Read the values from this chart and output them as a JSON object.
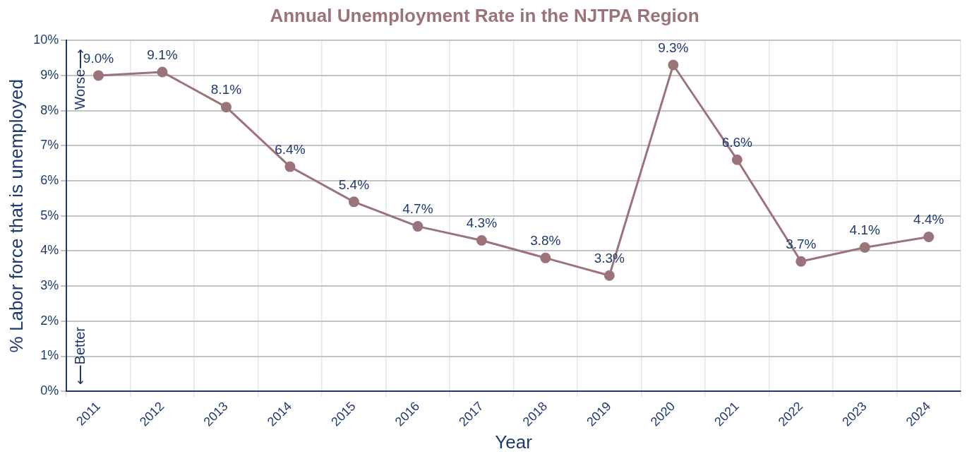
{
  "chart_data": {
    "type": "line",
    "title": "Annual Unemployment Rate in the NJTPA Region",
    "xlabel": "Year",
    "ylabel": "% Labor force that is unemployed",
    "categories": [
      "2011",
      "2012",
      "2013",
      "2014",
      "2015",
      "2016",
      "2017",
      "2018",
      "2019",
      "2020",
      "2021",
      "2022",
      "2023",
      "2024"
    ],
    "series": [
      {
        "color": "#9b747a",
        "values": [
          9.0,
          9.1,
          8.1,
          6.4,
          5.4,
          4.7,
          4.3,
          3.8,
          3.3,
          9.3,
          6.6,
          3.7,
          4.1,
          4.4
        ],
        "value_labels": [
          "9.0%",
          "9.1%",
          "8.1%",
          "6.4%",
          "5.4%",
          "4.7%",
          "4.3%",
          "3.8%",
          "3.3%",
          "9.3%",
          "6.6%",
          "3.7%",
          "4.1%",
          "4.4%"
        ]
      }
    ],
    "ylim": [
      0,
      10
    ],
    "yticks": [
      {
        "value": 0,
        "label": "0%"
      },
      {
        "value": 1,
        "label": "1%"
      },
      {
        "value": 2,
        "label": "2%"
      },
      {
        "value": 3,
        "label": "3%"
      },
      {
        "value": 4,
        "label": "4%"
      },
      {
        "value": 5,
        "label": "5%"
      },
      {
        "value": 6,
        "label": "6%"
      },
      {
        "value": 7,
        "label": "7%"
      },
      {
        "value": 8,
        "label": "8%"
      },
      {
        "value": 9,
        "label": "9%"
      },
      {
        "value": 10,
        "label": "10%"
      }
    ],
    "annotations": [
      "Worse⟶",
      "⟵Better"
    ],
    "grid": true,
    "legend": false,
    "marker": "circle",
    "line_style": "solid"
  }
}
